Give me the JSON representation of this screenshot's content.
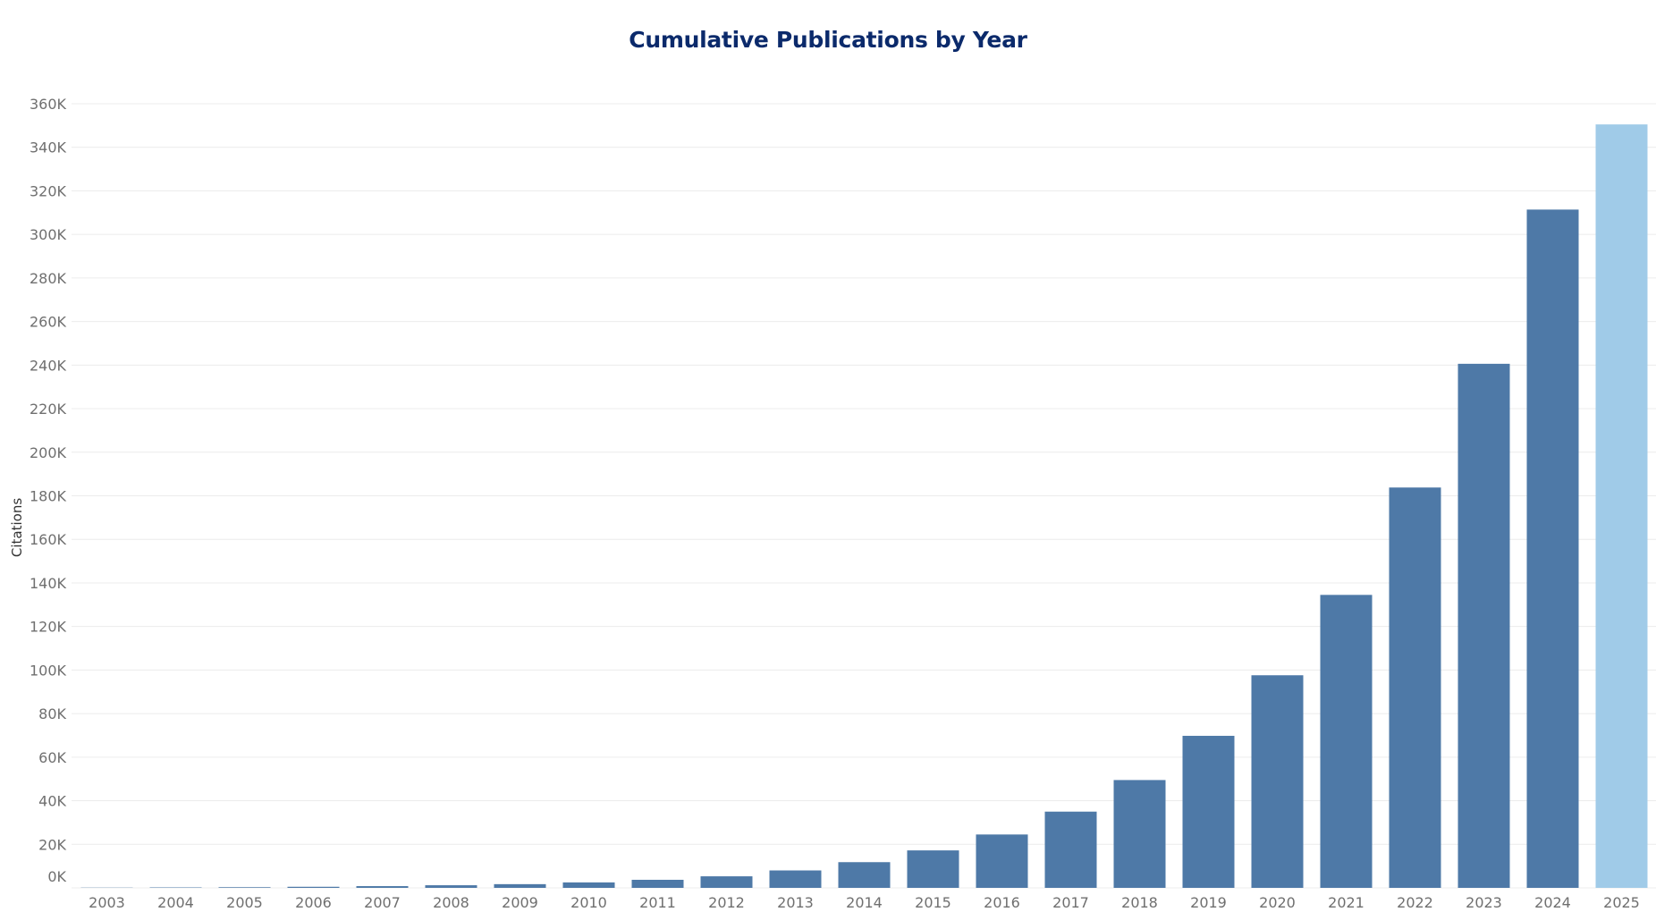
{
  "chart_data": {
    "type": "bar",
    "title": "Cumulative Publications by Year",
    "xlabel": "",
    "ylabel": "Citations",
    "ylim": [
      0,
      360000
    ],
    "y_ticks": [
      0,
      20000,
      40000,
      60000,
      80000,
      100000,
      120000,
      140000,
      160000,
      180000,
      200000,
      220000,
      240000,
      260000,
      280000,
      300000,
      320000,
      340000,
      360000
    ],
    "y_tick_labels": [
      "0K",
      "20K",
      "40K",
      "60K",
      "80K",
      "100K",
      "120K",
      "140K",
      "160K",
      "180K",
      "200K",
      "220K",
      "240K",
      "260K",
      "280K",
      "300K",
      "320K",
      "340K",
      "360K"
    ],
    "grid": true,
    "categories": [
      "2003",
      "2004",
      "2005",
      "2006",
      "2007",
      "2008",
      "2009",
      "2010",
      "2011",
      "2012",
      "2013",
      "2014",
      "2015",
      "2016",
      "2017",
      "2018",
      "2019",
      "2020",
      "2021",
      "2022",
      "2023",
      "2024",
      "2025"
    ],
    "values": [
      100,
      200,
      300,
      500,
      800,
      1200,
      1700,
      2500,
      3700,
      5300,
      8000,
      11800,
      17200,
      24500,
      35000,
      49500,
      69800,
      97600,
      134500,
      183800,
      240600,
      311400,
      350500
    ],
    "colors": {
      "bar": "#4e79a7",
      "bar_highlight": "#a0cbe8",
      "grid": "#ececec",
      "title": "#0b2a6b"
    },
    "highlight_category": "2025"
  }
}
